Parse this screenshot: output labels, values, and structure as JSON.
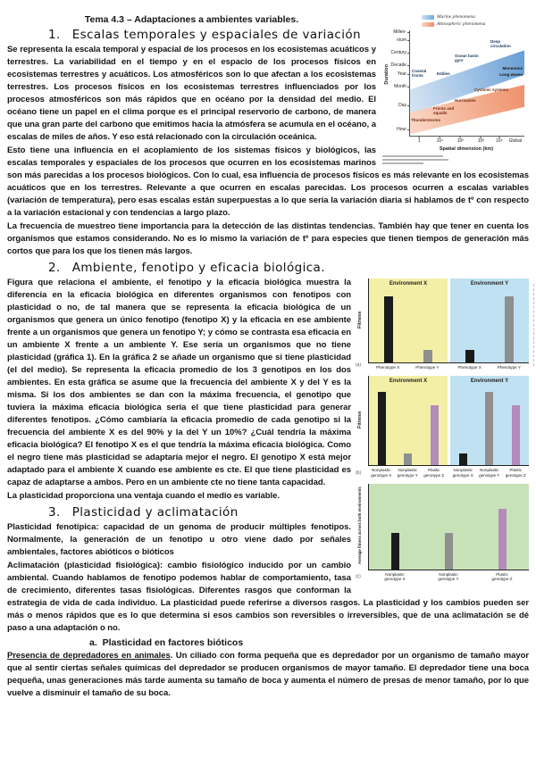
{
  "page": {
    "title": "Tema 4.3 – Adaptaciones a ambientes variables."
  },
  "sections": {
    "s1": {
      "number": "1.",
      "heading": "Escalas temporales y espaciales de variación",
      "p1": "Se representa la escala temporal y espacial de los procesos en los ecosistemas acuáticos y terrestres. La variabilidad en el tiempo y en el espacio de los procesos físicos en ecosistemas terrestres y acuáticos. Los atmosféricos son lo que afectan a los ecosistemas terrestres. Los procesos físicos en los ecosistemas terrestres influenciados por los procesos atmosféricos son más rápidos que en océano por la densidad del medio. El océano tiene un papel en el clima porque es el principal reservorio de carbono, de manera que una gran parte del carbono que emitimos hacia la atmósfera se acumula en el océano, a escalas de miles de años. Y eso está relacionado con la circulación oceánica.",
      "p2": "Esto tiene una influencia en el acoplamiento de los sistemas físicos y biológicos, las escalas temporales y espaciales de los procesos que ocurren en los ecosistemas marinos son más parecidas a los procesos biológicos. Con lo cual, esa influencia de procesos físicos es más relevante en los ecosistemas acuáticos que en los terrestres. Relevante a que ocurren en escalas parecidas. Los procesos ocurren a escalas variables (variación de temperatura), pero esas escalas están superpuestas a lo que sería la variación diaria si hablamos de tº con respecto a la variación estacional y con tendencias a largo plazo.",
      "p3": "La frecuencia de muestreo tiene importancia para la detección de las distintas tendencias. También hay que tener en cuenta los organismos que estamos considerando. No es lo mismo la variación de tº para especies que tienen tiempos de generación más cortos que para los que los tienen más largos."
    },
    "s2": {
      "number": "2.",
      "heading": "Ambiente, fenotipo y eficacia biológica.",
      "p1": "Figura que relaciona el ambiente, el fenotipo y la eficacia biológica muestra la diferencia en la eficacia biológica en diferentes organismos con fenotipos con plasticidad o no, de tal manera que se representa la eficacia biológica de un organismos que genera un único fenotipo (fenotipo X) y la eficacia en ese ambiente frente a un organismos que genera un fenotipo Y; y cómo se contrasta esa eficacia en un ambiente X frente a un ambiente Y. Ese sería un organismos que no tiene plasticidad (gráfica 1). En la gráfica 2 se añade un organismo que si tiene plasticidad (el del medio). Se representa la eficacia promedio de los 3 genotipos en los dos ambientes. En esta gráfica se asume que la frecuencia del ambiente X y del Y es la misma. Si los dos ambientes se dan con la máxima frecuencia, el genotipo que tuviera la máxima eficacia biológica sería el que tiene plasticidad para generar diferentes fenotipos. ¿Cómo cambiaría la eficacia promedio de cada genotipo si la frecuencia del ambiente X es del 90% y la del Y un 10%? ¿Cuál tendría la máxima eficacia biológica? El fenotipo X es el que tendría la máxima eficacia biológica. Como el negro tiene más plasticidad se adaptaría mejor el negro. El genotipo X está mejor adaptado para el ambiente X cuando ese ambiente es cte. El que tiene plasticidad es capaz de adaptarse a ambos. Pero en un ambiente cte no tiene tanta capacidad.",
      "p2": "La plasticidad proporciona una ventaja cuando el medio es variable."
    },
    "s3": {
      "number": "3.",
      "heading": "Plasticidad y aclimatación",
      "def1_term": "Plasticidad fenotípica",
      "def1_text": ": capacidad de un genoma de producir múltiples fenotipos. Normalmente, la generación de un fenotipo u otro viene dado por señales ambientales, factores abióticos o bióticos",
      "def2_term": "Aclimatación (plasticidad fisiológica)",
      "def2_text": ": cambio fisiológico inducido por un cambio ambiental. Cuando hablamos de fenotipo podemos hablar de comportamiento, tasa de crecimiento, diferentes tasas fisiológicas. Diferentes rasgos que conforman la estrategia de vida de cada individuo. La plasticidad puede referirse a diversos rasgos. La plasticidad y los cambios pueden ser más o menos rápidos que es lo que determina si esos cambios son reversibles o irreversibles, que de una aclimatación se dé paso a una adaptación o no.",
      "sub_a_number": "a.",
      "sub_a_heading": "Plasticidad en factores bióticos",
      "pred_term": "Presencia de depredadores en animales",
      "pred_text": ". Un ciliado con forma pequeña que es depredador por un organismo de tamaño mayor que al sentir ciertas señales químicas del depredador se producen organismos de mayor tamaño. El depredador tiene una boca pequeña, unas generaciones más tarde aumenta su tamaño de boca y aumenta el número de presas de menor tamaño, por lo que vuelve a disminuir el tamaño de su boca."
    }
  },
  "chart_data": [
    {
      "id": "scales-diagram",
      "type": "area",
      "xlabel": "Spatial dimension (km)",
      "ylabel": "Duration",
      "x_ticks": [
        "1",
        "10¹",
        "10²",
        "10³",
        "10⁴",
        "Global"
      ],
      "y_ticks": [
        "Millen-",
        "nium",
        "Century",
        "Decade",
        "Year",
        "Month",
        "Day",
        "Hour"
      ],
      "legend": [
        {
          "label": "Marine phenomena",
          "color": "#a9c9e9"
        },
        {
          "label": "Atmospheric phenomena",
          "color": "#f5b08e"
        }
      ],
      "marine_labels": [
        "Coastal fronts",
        "Eddies",
        "Ocean basin gyre",
        "Deep circulation"
      ],
      "atmos_labels": [
        "Thunderstorms",
        "Fronts and squalls",
        "Hurricanes",
        "Cyclonic systems"
      ],
      "outside_labels": [
        "Monsoons",
        "Long waves"
      ],
      "band_colors": {
        "marine": "#5e99d1",
        "atmospheric": "#ec8a64"
      }
    },
    {
      "id": "fitness-by-phenotype",
      "type": "bar",
      "panel_label": "(a)",
      "ylabel": "Fitness",
      "panels": [
        {
          "title": "Environment X",
          "bg": "#f3efa6",
          "bars": [
            {
              "label": "Phenotype X",
              "value": 0.92,
              "color": "#1b1b1b"
            },
            {
              "label": "Phenotype Y",
              "value": 0.17,
              "color": "#8f8f8f"
            }
          ]
        },
        {
          "title": "Environment Y",
          "bg": "#bfe1f2",
          "bars": [
            {
              "label": "Phenotype X",
              "value": 0.17,
              "color": "#1b1b1b"
            },
            {
              "label": "Phenotype Y",
              "value": 0.92,
              "color": "#8f8f8f"
            }
          ]
        }
      ]
    },
    {
      "id": "fitness-by-genotype",
      "type": "bar",
      "panel_label": "(b)",
      "ylabel": "Fitness",
      "panels": [
        {
          "title": "Environment X",
          "bg": "#f3efa6",
          "bars": [
            {
              "label": "Nonplastic genotype X",
              "value": 0.95,
              "color": "#1b1b1b"
            },
            {
              "label": "Nonplastic genotype Y",
              "value": 0.15,
              "color": "#8f8f8f"
            },
            {
              "label": "Plastic genotype Z",
              "value": 0.78,
              "color": "#b58bbb"
            }
          ]
        },
        {
          "title": "Environment Y",
          "bg": "#bfe1f2",
          "bars": [
            {
              "label": "Nonplastic genotype X",
              "value": 0.15,
              "color": "#1b1b1b"
            },
            {
              "label": "Nonplastic genotype Y",
              "value": 0.95,
              "color": "#8f8f8f"
            },
            {
              "label": "Plastic genotype Z",
              "value": 0.78,
              "color": "#b58bbb"
            }
          ]
        }
      ]
    },
    {
      "id": "average-fitness",
      "type": "bar",
      "panel_label": "(c)",
      "ylabel": "Average fitness across both environments",
      "panels": [
        {
          "title": null,
          "bg": "#c8e2b8",
          "bars": [
            {
              "label": "Nonplastic genotype X",
              "value": 0.44,
              "color": "#1b1b1b"
            },
            {
              "label": "Nonplastic genotype Y",
              "value": 0.44,
              "color": "#8f8f8f"
            },
            {
              "label": "Plastic genotype Z",
              "value": 0.72,
              "color": "#b58bbb"
            }
          ]
        }
      ]
    }
  ]
}
